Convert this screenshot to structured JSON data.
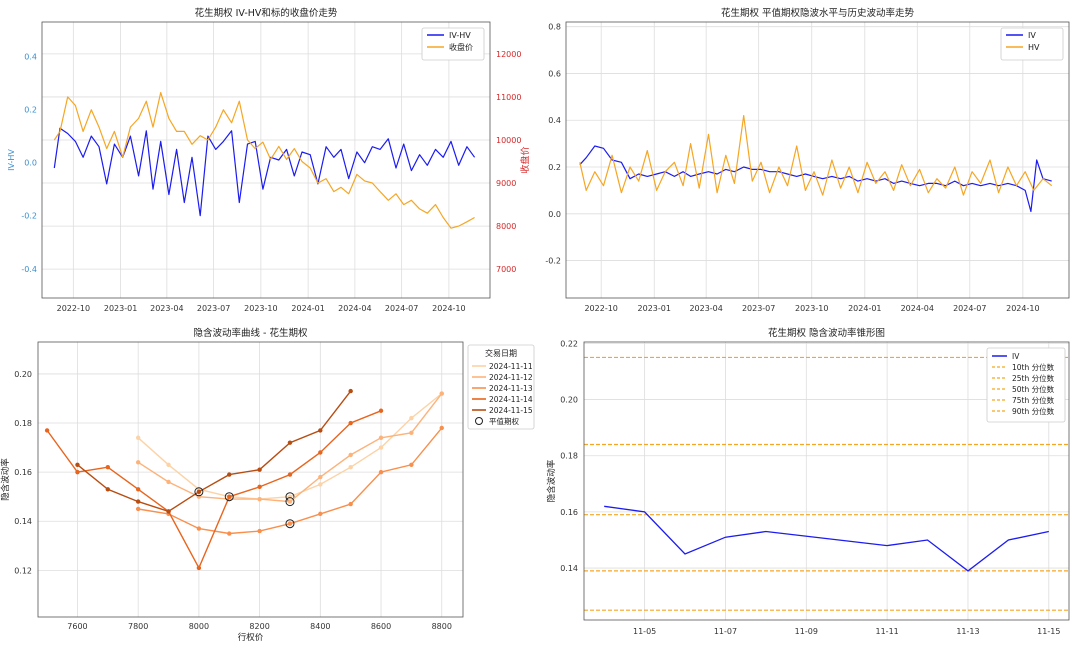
{
  "chart_data": [
    {
      "id": "c1",
      "type": "line",
      "title": "花生期权 IV-HV和标的收盘价走势",
      "ylabel": "IV-HV",
      "y2label": "收盘价",
      "xlim": [
        "2022-08-01",
        "2024-12-20"
      ],
      "ylim": [
        -0.51,
        0.53
      ],
      "y2lim": [
        6330,
        12740
      ],
      "xticks": [
        "2022-10",
        "2023-01",
        "2023-04",
        "2023-07",
        "2023-10",
        "2024-01",
        "2024-04",
        "2024-07",
        "2024-10"
      ],
      "yticks": [
        -0.4,
        -0.2,
        0.0,
        0.2,
        0.4
      ],
      "y2ticks": [
        7000,
        8000,
        9000,
        10000,
        11000,
        12000
      ],
      "legend_position": "top-right",
      "grid": true,
      "series": [
        {
          "name": "IV-HV",
          "axis": "left",
          "color": "#1c1cf0",
          "x": [
            "2022-08-25",
            "2022-09-05",
            "2022-09-20",
            "2022-10-05",
            "2022-10-20",
            "2022-11-05",
            "2022-11-20",
            "2022-12-05",
            "2022-12-20",
            "2023-01-05",
            "2023-01-20",
            "2023-02-05",
            "2023-02-20",
            "2023-03-05",
            "2023-03-20",
            "2023-04-05",
            "2023-04-20",
            "2023-05-05",
            "2023-05-20",
            "2023-06-05",
            "2023-06-20",
            "2023-07-05",
            "2023-07-20",
            "2023-08-05",
            "2023-08-20",
            "2023-09-05",
            "2023-09-20",
            "2023-10-05",
            "2023-10-20",
            "2023-11-05",
            "2023-11-20",
            "2023-12-05",
            "2023-12-20",
            "2024-01-05",
            "2024-01-20",
            "2024-02-05",
            "2024-02-20",
            "2024-03-05",
            "2024-03-20",
            "2024-04-05",
            "2024-04-20",
            "2024-05-05",
            "2024-05-20",
            "2024-06-05",
            "2024-06-20",
            "2024-07-05",
            "2024-07-20",
            "2024-08-05",
            "2024-08-20",
            "2024-09-05",
            "2024-09-20",
            "2024-10-05",
            "2024-10-20",
            "2024-11-05",
            "2024-11-20"
          ],
          "y": [
            -0.02,
            0.13,
            0.11,
            0.08,
            0.02,
            0.1,
            0.06,
            -0.08,
            0.07,
            0.02,
            0.1,
            -0.05,
            0.12,
            -0.1,
            0.08,
            -0.12,
            0.05,
            -0.15,
            0.02,
            -0.2,
            0.1,
            0.05,
            0.08,
            0.12,
            -0.15,
            0.07,
            0.08,
            -0.1,
            0.02,
            0.01,
            0.05,
            -0.05,
            0.04,
            0.03,
            -0.08,
            0.06,
            0.02,
            0.05,
            -0.06,
            0.04,
            0.0,
            0.06,
            0.05,
            0.09,
            -0.02,
            0.07,
            -0.03,
            0.03,
            -0.01,
            0.05,
            0.02,
            0.08,
            -0.01,
            0.06,
            0.02
          ]
        },
        {
          "name": "收盘价",
          "axis": "right",
          "color": "#f5a623",
          "x": [
            "2022-08-25",
            "2022-09-05",
            "2022-09-20",
            "2022-10-05",
            "2022-10-20",
            "2022-11-05",
            "2022-11-20",
            "2022-12-05",
            "2022-12-20",
            "2023-01-05",
            "2023-01-20",
            "2023-02-05",
            "2023-02-20",
            "2023-03-05",
            "2023-03-20",
            "2023-04-05",
            "2023-04-20",
            "2023-05-05",
            "2023-05-20",
            "2023-06-05",
            "2023-06-20",
            "2023-07-05",
            "2023-07-20",
            "2023-08-05",
            "2023-08-20",
            "2023-09-05",
            "2023-09-20",
            "2023-10-05",
            "2023-10-20",
            "2023-11-05",
            "2023-11-20",
            "2023-12-05",
            "2023-12-20",
            "2024-01-05",
            "2024-01-20",
            "2024-02-05",
            "2024-02-20",
            "2024-03-05",
            "2024-03-20",
            "2024-04-05",
            "2024-04-20",
            "2024-05-05",
            "2024-05-20",
            "2024-06-05",
            "2024-06-20",
            "2024-07-05",
            "2024-07-20",
            "2024-08-05",
            "2024-08-20",
            "2024-09-05",
            "2024-09-20",
            "2024-10-05",
            "2024-10-20",
            "2024-11-05",
            "2024-11-20"
          ],
          "y": [
            10000,
            10200,
            11000,
            10800,
            10200,
            10700,
            10300,
            9800,
            10200,
            9600,
            10300,
            10500,
            10900,
            10300,
            11100,
            10500,
            10200,
            10200,
            9900,
            10100,
            10000,
            10300,
            10700,
            10400,
            10900,
            10000,
            9800,
            9950,
            9550,
            9850,
            9550,
            9800,
            9500,
            9350,
            9000,
            9100,
            8800,
            8900,
            8750,
            9200,
            9050,
            9000,
            8800,
            8600,
            8750,
            8500,
            8600,
            8400,
            8300,
            8500,
            8200,
            7950,
            8000,
            8100,
            8200
          ]
        }
      ]
    },
    {
      "id": "c2",
      "type": "line",
      "title": "花生期权 平值期权隐波水平与历史波动率走势",
      "xlim": [
        "2022-08-01",
        "2024-12-20"
      ],
      "ylim": [
        -0.36,
        0.82
      ],
      "xticks": [
        "2022-10",
        "2023-01",
        "2023-04",
        "2023-07",
        "2023-10",
        "2024-01",
        "2024-04",
        "2024-07",
        "2024-10"
      ],
      "yticks": [
        -0.2,
        0.0,
        0.2,
        0.4,
        0.6,
        0.8
      ],
      "legend_position": "top-right",
      "grid": true,
      "series": [
        {
          "name": "IV",
          "color": "#1c1cf0",
          "x": [
            "2022-08-25",
            "2022-09-05",
            "2022-09-20",
            "2022-10-05",
            "2022-10-20",
            "2022-11-05",
            "2022-11-20",
            "2022-12-05",
            "2022-12-20",
            "2023-01-05",
            "2023-01-20",
            "2023-02-05",
            "2023-02-20",
            "2023-03-05",
            "2023-03-20",
            "2023-04-05",
            "2023-04-20",
            "2023-05-05",
            "2023-05-20",
            "2023-06-05",
            "2023-06-20",
            "2023-07-05",
            "2023-07-20",
            "2023-08-05",
            "2023-08-20",
            "2023-09-05",
            "2023-09-20",
            "2023-10-05",
            "2023-10-20",
            "2023-11-05",
            "2023-11-20",
            "2023-12-05",
            "2023-12-20",
            "2024-01-05",
            "2024-01-20",
            "2024-02-05",
            "2024-02-20",
            "2024-03-05",
            "2024-03-20",
            "2024-04-05",
            "2024-04-20",
            "2024-05-05",
            "2024-05-20",
            "2024-06-05",
            "2024-06-20",
            "2024-07-05",
            "2024-07-20",
            "2024-08-05",
            "2024-08-20",
            "2024-09-05",
            "2024-09-20",
            "2024-10-05",
            "2024-10-15",
            "2024-10-25",
            "2024-11-05",
            "2024-11-20"
          ],
          "y": [
            0.21,
            0.24,
            0.29,
            0.28,
            0.23,
            0.22,
            0.15,
            0.17,
            0.16,
            0.17,
            0.18,
            0.16,
            0.18,
            0.16,
            0.17,
            0.18,
            0.17,
            0.19,
            0.18,
            0.2,
            0.19,
            0.19,
            0.18,
            0.18,
            0.17,
            0.16,
            0.17,
            0.16,
            0.15,
            0.16,
            0.15,
            0.16,
            0.14,
            0.15,
            0.14,
            0.15,
            0.13,
            0.14,
            0.13,
            0.12,
            0.13,
            0.13,
            0.12,
            0.14,
            0.12,
            0.13,
            0.12,
            0.13,
            0.12,
            0.13,
            0.12,
            0.1,
            0.01,
            0.23,
            0.15,
            0.14
          ]
        },
        {
          "name": "HV",
          "color": "#f5a623",
          "x": [
            "2022-08-25",
            "2022-09-05",
            "2022-09-20",
            "2022-10-05",
            "2022-10-20",
            "2022-11-05",
            "2022-11-20",
            "2022-12-05",
            "2022-12-20",
            "2023-01-05",
            "2023-01-20",
            "2023-02-05",
            "2023-02-20",
            "2023-03-05",
            "2023-03-20",
            "2023-04-05",
            "2023-04-20",
            "2023-05-05",
            "2023-05-20",
            "2023-06-05",
            "2023-06-20",
            "2023-07-05",
            "2023-07-20",
            "2023-08-05",
            "2023-08-20",
            "2023-09-05",
            "2023-09-20",
            "2023-10-05",
            "2023-10-20",
            "2023-11-05",
            "2023-11-20",
            "2023-12-05",
            "2023-12-20",
            "2024-01-05",
            "2024-01-20",
            "2024-02-05",
            "2024-02-20",
            "2024-03-05",
            "2024-03-20",
            "2024-04-05",
            "2024-04-20",
            "2024-05-05",
            "2024-05-20",
            "2024-06-05",
            "2024-06-20",
            "2024-07-05",
            "2024-07-20",
            "2024-08-05",
            "2024-08-20",
            "2024-09-05",
            "2024-09-20",
            "2024-10-05",
            "2024-10-20",
            "2024-11-05",
            "2024-11-20"
          ],
          "y": [
            0.22,
            0.1,
            0.18,
            0.12,
            0.25,
            0.09,
            0.2,
            0.14,
            0.27,
            0.1,
            0.18,
            0.22,
            0.12,
            0.3,
            0.11,
            0.34,
            0.09,
            0.25,
            0.13,
            0.42,
            0.14,
            0.22,
            0.09,
            0.2,
            0.12,
            0.29,
            0.1,
            0.18,
            0.08,
            0.23,
            0.11,
            0.2,
            0.09,
            0.22,
            0.13,
            0.18,
            0.1,
            0.21,
            0.12,
            0.19,
            0.09,
            0.15,
            0.11,
            0.2,
            0.08,
            0.18,
            0.13,
            0.23,
            0.09,
            0.2,
            0.12,
            0.18,
            0.1,
            0.15,
            0.12
          ]
        }
      ]
    },
    {
      "id": "c3",
      "type": "line",
      "title": "隐含波动率曲线 - 花生期权",
      "xlabel": "行权价",
      "ylabel": "隐含波动率",
      "xlim": [
        7470,
        8870
      ],
      "ylim": [
        0.101,
        0.213
      ],
      "xticks": [
        7600,
        7800,
        8000,
        8200,
        8400,
        8600,
        8800
      ],
      "yticks": [
        0.12,
        0.14,
        0.16,
        0.18,
        0.2
      ],
      "legend_title": "交易日期",
      "legend_position": "top-right",
      "atm_label": "平值期权",
      "grid": true,
      "series": [
        {
          "name": "2024-11-11",
          "color": "#fdd2a5",
          "x": [
            7800,
            7900,
            8000,
            8100,
            8200,
            8300,
            8400,
            8500,
            8600,
            8700,
            8800
          ],
          "y": [
            0.174,
            0.163,
            0.153,
            0.15,
            0.149,
            0.15,
            0.155,
            0.162,
            0.17,
            0.182,
            0.192
          ],
          "atm_x": 8300
        },
        {
          "name": "2024-11-12",
          "color": "#fdb27a",
          "x": [
            7800,
            7900,
            8000,
            8100,
            8200,
            8300,
            8400,
            8500,
            8600,
            8700,
            8800
          ],
          "y": [
            0.164,
            0.156,
            0.15,
            0.149,
            0.149,
            0.148,
            0.158,
            0.167,
            0.174,
            0.176,
            0.192
          ],
          "atm_x": 8300
        },
        {
          "name": "2024-11-13",
          "color": "#f98f4c",
          "x": [
            7800,
            7900,
            8000,
            8100,
            8200,
            8300,
            8400,
            8500,
            8600,
            8700,
            8800
          ],
          "y": [
            0.145,
            0.143,
            0.137,
            0.135,
            0.136,
            0.139,
            0.143,
            0.147,
            0.16,
            0.163,
            0.178
          ],
          "atm_x": 8300
        },
        {
          "name": "2024-11-14",
          "color": "#e9641d",
          "x": [
            7500,
            7600,
            7700,
            7800,
            7900,
            8000,
            8100,
            8200,
            8300,
            8400,
            8500,
            8600
          ],
          "y": [
            0.177,
            0.16,
            0.162,
            0.153,
            0.144,
            0.121,
            0.15,
            0.154,
            0.159,
            0.168,
            0.18,
            0.185
          ],
          "atm_x": 8100
        },
        {
          "name": "2024-11-15",
          "color": "#b84d12",
          "x": [
            7600,
            7700,
            7800,
            7900,
            8000,
            8100,
            8200,
            8300,
            8400,
            8500
          ],
          "y": [
            0.163,
            0.153,
            0.148,
            0.144,
            0.152,
            0.159,
            0.161,
            0.172,
            0.177,
            0.193
          ],
          "atm_x": 8000
        }
      ]
    },
    {
      "id": "c4",
      "type": "line",
      "title": "花生期权 隐含波动率锥形图",
      "ylabel": "隐含波动率",
      "xlim": [
        "2024-11-03 12:00",
        "2024-11-15 12:00"
      ],
      "ylim": [
        0.1215,
        0.2205
      ],
      "xticks": [
        "11-05",
        "11-07",
        "11-09",
        "11-11",
        "11-13",
        "11-15"
      ],
      "xtick_dates": [
        "2024-11-05",
        "2024-11-07",
        "2024-11-09",
        "2024-11-11",
        "2024-11-13",
        "2024-11-15"
      ],
      "yticks": [
        0.14,
        0.16,
        0.18,
        0.2,
        0.22
      ],
      "legend_position": "top-right",
      "grid": true,
      "series": [
        {
          "name": "IV",
          "color": "#1c1cf0",
          "x": [
            "2024-11-04",
            "2024-11-05",
            "2024-11-06",
            "2024-11-07",
            "2024-11-08",
            "2024-11-11",
            "2024-11-12",
            "2024-11-13",
            "2024-11-14",
            "2024-11-15"
          ],
          "y": [
            0.162,
            0.16,
            0.145,
            0.151,
            0.153,
            0.148,
            0.15,
            0.139,
            0.15,
            0.153
          ]
        }
      ],
      "percentiles": [
        {
          "name": "10th 分位数",
          "value": 0.125
        },
        {
          "name": "25th 分位数",
          "value": 0.139
        },
        {
          "name": "50th 分位数",
          "value": 0.159
        },
        {
          "name": "75th 分位数",
          "value": 0.184
        },
        {
          "name": "90th 分位数",
          "value": 0.215
        }
      ],
      "percentile_color": "#f5a623"
    }
  ]
}
